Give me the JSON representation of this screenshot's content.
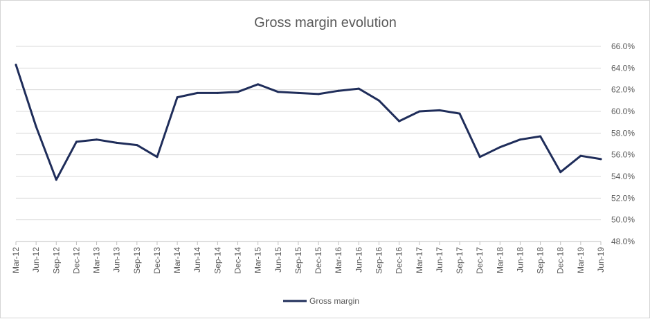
{
  "chart_data": {
    "type": "line",
    "title": "Gross margin evolution",
    "xlabel": "",
    "ylabel": "",
    "ylim": [
      48,
      66
    ],
    "yticks": [
      48,
      50,
      52,
      54,
      56,
      58,
      60,
      62,
      64,
      66
    ],
    "ytick_labels": [
      "48.0%",
      "50.0%",
      "52.0%",
      "54.0%",
      "56.0%",
      "58.0%",
      "60.0%",
      "62.0%",
      "64.0%",
      "66.0%"
    ],
    "grid": true,
    "legend_position": "bottom",
    "categories": [
      "Mar-12",
      "Jun-12",
      "Sep-12",
      "Dec-12",
      "Mar-13",
      "Jun-13",
      "Sep-13",
      "Dec-13",
      "Mar-14",
      "Jun-14",
      "Sep-14",
      "Dec-14",
      "Mar-15",
      "Jun-15",
      "Sep-15",
      "Dec-15",
      "Mar-16",
      "Jun-16",
      "Sep-16",
      "Dec-16",
      "Mar-17",
      "Jun-17",
      "Sep-17",
      "Dec-17",
      "Mar-18",
      "Jun-18",
      "Sep-18",
      "Dec-18",
      "Mar-19",
      "Jun-19"
    ],
    "series": [
      {
        "name": "Gross margin",
        "color": "#1f2d5a",
        "values": [
          64.3,
          58.6,
          53.7,
          57.2,
          57.4,
          57.1,
          56.9,
          55.8,
          61.3,
          61.7,
          61.7,
          61.8,
          62.5,
          61.8,
          61.7,
          61.6,
          61.9,
          62.1,
          61.0,
          59.1,
          60.0,
          60.1,
          59.8,
          55.8,
          56.7,
          57.4,
          57.7,
          54.4,
          55.9,
          55.6
        ]
      }
    ]
  }
}
